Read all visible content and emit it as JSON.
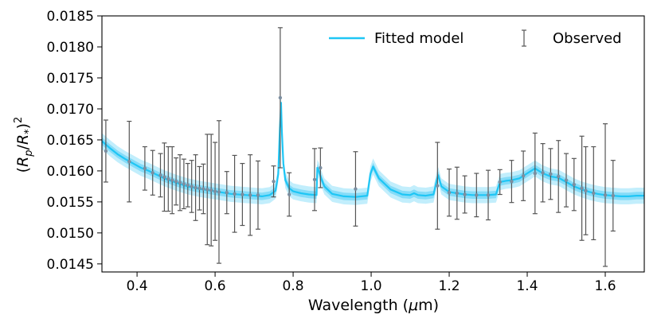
{
  "chart_data": {
    "type": "line",
    "title": "",
    "xlabel": "Wavelength (μm)",
    "ylabel": "(R_p/R_*)^2",
    "xlim": [
      0.31,
      1.7
    ],
    "ylim": [
      0.01437,
      0.0185
    ],
    "xticks": [
      0.4,
      0.6,
      0.8,
      1.0,
      1.2,
      1.4,
      1.6
    ],
    "xtick_labels": [
      "0.4",
      "0.6",
      "0.8",
      "1.0",
      "1.2",
      "1.4",
      "1.6"
    ],
    "yticks": [
      0.0145,
      0.015,
      0.0155,
      0.016,
      0.0165,
      0.017,
      0.0175,
      0.018,
      0.0185
    ],
    "ytick_labels": [
      "0.0145",
      "0.0150",
      "0.0155",
      "0.0160",
      "0.0165",
      "0.0170",
      "0.0175",
      "0.0180",
      "0.0185"
    ],
    "legend": {
      "position": "top-right",
      "entries": [
        {
          "label": "Fitted model",
          "kind": "line"
        },
        {
          "label": "Observed",
          "kind": "errorbar"
        }
      ]
    },
    "colors": {
      "model": "#1ec6f5",
      "band_outer": "#c2eefc",
      "band_inner": "#85dcf8",
      "observed": "#555555",
      "marker": "#7c8ea0"
    },
    "model": {
      "x": [
        0.31,
        0.33,
        0.35,
        0.37,
        0.39,
        0.41,
        0.43,
        0.45,
        0.47,
        0.5,
        0.53,
        0.56,
        0.6,
        0.64,
        0.68,
        0.72,
        0.74,
        0.755,
        0.762,
        0.766,
        0.769,
        0.771,
        0.775,
        0.78,
        0.79,
        0.8,
        0.82,
        0.84,
        0.86,
        0.862,
        0.866,
        0.872,
        0.88,
        0.9,
        0.93,
        0.96,
        0.99,
        0.998,
        1.005,
        1.02,
        1.05,
        1.08,
        1.1,
        1.11,
        1.12,
        1.14,
        1.16,
        1.168,
        1.172,
        1.18,
        1.2,
        1.22,
        1.24,
        1.26,
        1.28,
        1.3,
        1.32,
        1.33,
        1.345,
        1.36,
        1.38,
        1.4,
        1.42,
        1.44,
        1.46,
        1.48,
        1.5,
        1.52,
        1.54,
        1.56,
        1.58,
        1.6,
        1.62,
        1.64,
        1.66,
        1.68,
        1.7
      ],
      "y": [
        0.01648,
        0.01637,
        0.01627,
        0.01619,
        0.01612,
        0.01605,
        0.016,
        0.01594,
        0.01588,
        0.01581,
        0.01575,
        0.01571,
        0.01567,
        0.01563,
        0.01561,
        0.01559,
        0.01561,
        0.01568,
        0.01595,
        0.01668,
        0.0171,
        0.01665,
        0.01612,
        0.01585,
        0.01572,
        0.01567,
        0.01564,
        0.01562,
        0.01561,
        0.01605,
        0.016,
        0.01588,
        0.01575,
        0.01563,
        0.01559,
        0.01558,
        0.0156,
        0.01595,
        0.01607,
        0.01588,
        0.0157,
        0.01562,
        0.01561,
        0.01564,
        0.01561,
        0.0156,
        0.01562,
        0.01585,
        0.01593,
        0.01575,
        0.01566,
        0.01564,
        0.01562,
        0.01561,
        0.01561,
        0.01561,
        0.01562,
        0.01582,
        0.01584,
        0.01585,
        0.01588,
        0.01596,
        0.01604,
        0.01596,
        0.01591,
        0.01589,
        0.01582,
        0.01575,
        0.0157,
        0.01566,
        0.01563,
        0.01561,
        0.0156,
        0.01559,
        0.01559,
        0.0156,
        0.0156
      ],
      "band_outer": 0.00013,
      "band_inner": 6e-05
    },
    "observed": {
      "x": [
        0.32,
        0.38,
        0.42,
        0.44,
        0.46,
        0.47,
        0.48,
        0.49,
        0.5,
        0.51,
        0.52,
        0.53,
        0.54,
        0.55,
        0.56,
        0.57,
        0.58,
        0.59,
        0.6,
        0.61,
        0.63,
        0.65,
        0.67,
        0.69,
        0.71,
        0.75,
        0.767,
        0.79,
        0.855,
        0.87,
        0.96,
        1.17,
        1.2,
        1.22,
        1.24,
        1.27,
        1.3,
        1.33,
        1.36,
        1.39,
        1.42,
        1.44,
        1.46,
        1.48,
        1.5,
        1.52,
        1.54,
        1.55,
        1.57,
        1.6,
        1.62
      ],
      "y": [
        0.01632,
        0.01615,
        0.01604,
        0.01597,
        0.01593,
        0.0159,
        0.01587,
        0.01585,
        0.01583,
        0.01581,
        0.01579,
        0.01577,
        0.01575,
        0.01573,
        0.01572,
        0.01571,
        0.0157,
        0.01569,
        0.01567,
        0.01566,
        0.01565,
        0.01563,
        0.01562,
        0.01561,
        0.01561,
        0.01583,
        0.01718,
        0.01562,
        0.01586,
        0.01605,
        0.01571,
        0.01576,
        0.01565,
        0.01564,
        0.01562,
        0.01561,
        0.01561,
        0.01582,
        0.01583,
        0.01592,
        0.01596,
        0.01597,
        0.01595,
        0.01591,
        0.01585,
        0.01578,
        0.01572,
        0.01568,
        0.01564,
        0.01561,
        0.0156
      ],
      "err": [
        0.0005,
        0.00065,
        0.00035,
        0.00036,
        0.00035,
        0.00055,
        0.00052,
        0.00054,
        0.00038,
        0.00045,
        0.0004,
        0.00035,
        0.00042,
        0.00053,
        0.00035,
        0.0004,
        0.00089,
        0.0009,
        0.00079,
        0.00115,
        0.00034,
        0.00062,
        0.0005,
        0.00065,
        0.00055,
        0.00025,
        0.00113,
        0.00035,
        0.0005,
        0.00032,
        0.0006,
        0.0007,
        0.00038,
        0.00042,
        0.0003,
        0.00035,
        0.0004,
        0.0002,
        0.00034,
        0.0004,
        0.00065,
        0.00047,
        0.00041,
        0.00058,
        0.00043,
        0.00042,
        0.00084,
        0.00071,
        0.00075,
        0.00115,
        0.00057
      ]
    }
  }
}
